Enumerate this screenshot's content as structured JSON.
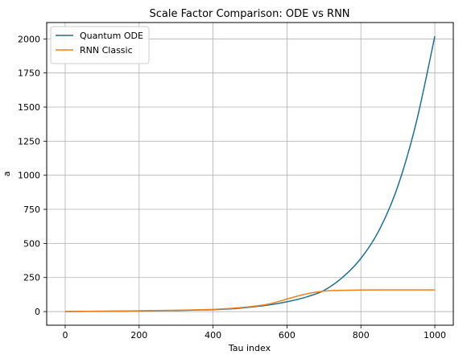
{
  "chart_data": {
    "type": "line",
    "title": "Scale Factor Comparison: ODE vs RNN",
    "xlabel": "Tau index",
    "ylabel": "a",
    "xlim": [
      -50,
      1050
    ],
    "ylim": [
      -100,
      2120
    ],
    "xticks": [
      0,
      200,
      400,
      600,
      800,
      1000
    ],
    "yticks": [
      0,
      250,
      500,
      750,
      1000,
      1250,
      1500,
      1750,
      2000
    ],
    "grid": true,
    "legend_position": "top-left",
    "series": [
      {
        "name": "Quantum ODE",
        "color": "#1f6f94",
        "x": [
          0,
          100,
          200,
          300,
          400,
          450,
          500,
          550,
          600,
          650,
          700,
          750,
          800,
          850,
          900,
          950,
          1000
        ],
        "y": [
          0,
          2,
          4,
          8,
          14,
          20,
          32,
          48,
          72,
          105,
          155,
          250,
          390,
          600,
          920,
          1390,
          2020
        ]
      },
      {
        "name": "RNN Classic",
        "color": "#ef7f18",
        "x": [
          0,
          100,
          200,
          300,
          400,
          450,
          500,
          550,
          600,
          650,
          700,
          750,
          800,
          850,
          900,
          950,
          1000
        ],
        "y": [
          0,
          3,
          6,
          10,
          16,
          24,
          36,
          55,
          92,
          128,
          150,
          156,
          158,
          159,
          159,
          159,
          159
        ]
      }
    ]
  }
}
